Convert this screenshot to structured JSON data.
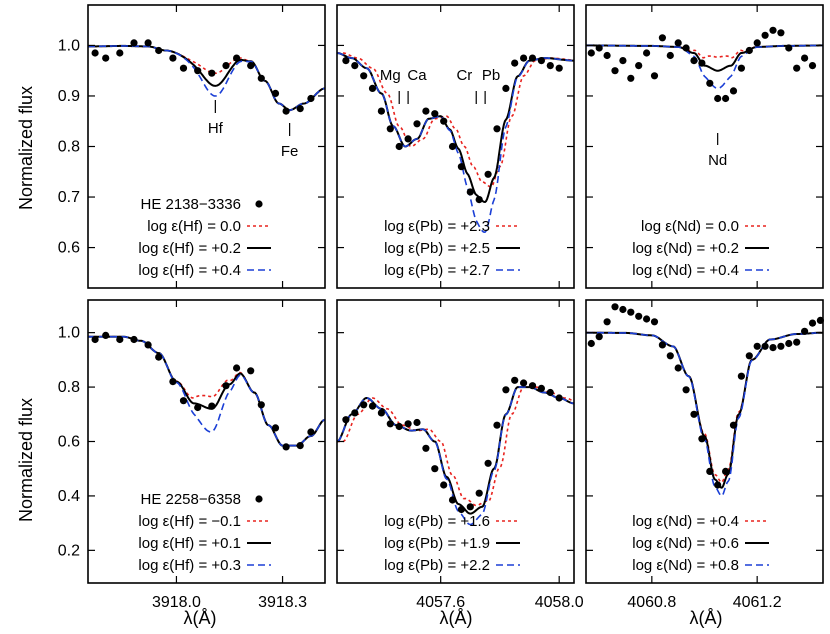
{
  "figure": {
    "xlabel": "λ(Å)",
    "ylabel": "Normalized flux",
    "colors": {
      "obs": "#000000",
      "low": "#e8231f",
      "mid": "#000000",
      "high": "#1b3fd6",
      "smooth": "#1b3fd6"
    }
  },
  "chart_data": [
    {
      "type": "line",
      "row": 0,
      "col": 0,
      "xlim": [
        3917.75,
        3918.42
      ],
      "ylim": [
        0.52,
        1.08
      ],
      "xticks": [],
      "yticks": [
        0.6,
        0.7,
        0.8,
        0.9,
        1.0
      ],
      "star": "HE 2138−3336",
      "legend": [
        "log ε(Hf) =  0.0",
        "log ε(Hf) = +0.2",
        "log ε(Hf) = +0.4"
      ],
      "legend_style": [
        "low",
        "mid",
        "high"
      ],
      "annotations": [
        {
          "text": "Hf",
          "x": 3918.11
        },
        {
          "text": "Fe",
          "x": 3918.32
        }
      ],
      "observed": {
        "x": [
          3917.77,
          3917.8,
          3917.84,
          3917.88,
          3917.92,
          3917.95,
          3917.99,
          3918.02,
          3918.06,
          3918.1,
          3918.14,
          3918.17,
          3918.21,
          3918.24,
          3918.28,
          3918.31,
          3918.35,
          3918.38
        ],
        "y": [
          0.985,
          0.975,
          0.985,
          1.005,
          1.005,
          0.99,
          0.975,
          0.955,
          0.95,
          0.945,
          0.96,
          0.975,
          0.96,
          0.935,
          0.905,
          0.87,
          0.875,
          0.895
        ]
      },
      "lines": [
        {
          "style": "low",
          "center": 3918.11,
          "depth": 0.03
        },
        {
          "style": "mid",
          "center": 3918.11,
          "depth": 0.055
        },
        {
          "style": "high",
          "center": 3918.11,
          "depth": 0.075
        }
      ],
      "profile": {
        "x": [
          3917.75,
          3917.85,
          3917.92,
          3917.97,
          3918.05,
          3918.11,
          3918.17,
          3918.21,
          3918.25,
          3918.29,
          3918.32,
          3918.36,
          3918.42
        ],
        "y": [
          0.998,
          0.999,
          0.998,
          0.99,
          0.975,
          0.975,
          0.982,
          0.97,
          0.93,
          0.885,
          0.872,
          0.885,
          0.915
        ]
      },
      "smooth_from_profile": true
    },
    {
      "type": "line",
      "row": 0,
      "col": 1,
      "xlim": [
        4057.25,
        4058.05
      ],
      "ylim": [
        0.52,
        1.08
      ],
      "xticks": [],
      "yticks": [
        0.6,
        0.7,
        0.8,
        0.9,
        1.0
      ],
      "legend": [
        "log ε(Pb) = +2.3",
        "log ε(Pb) = +2.5",
        "log ε(Pb) = +2.7"
      ],
      "legend_style": [
        "low",
        "mid",
        "high"
      ],
      "annotations": [
        {
          "text": "Mg",
          "x": 4057.43
        },
        {
          "text": "Ca",
          "x": 4057.52
        },
        {
          "text": "Cr",
          "x": 4057.68
        },
        {
          "text": "Pb",
          "x": 4057.77
        }
      ],
      "tickmarks": [
        4057.46,
        4057.49,
        4057.72,
        4057.75
      ],
      "observed": {
        "x": [
          4057.28,
          4057.31,
          4057.34,
          4057.37,
          4057.4,
          4057.43,
          4057.46,
          4057.49,
          4057.52,
          4057.55,
          4057.58,
          4057.61,
          4057.64,
          4057.67,
          4057.7,
          4057.73,
          4057.76,
          4057.79,
          4057.82,
          4057.85,
          4057.88,
          4057.91,
          4057.94,
          4057.97,
          4058.0
        ],
        "y": [
          0.97,
          0.96,
          0.94,
          0.915,
          0.87,
          0.835,
          0.8,
          0.815,
          0.845,
          0.87,
          0.865,
          0.85,
          0.8,
          0.76,
          0.71,
          0.695,
          0.745,
          0.835,
          0.915,
          0.965,
          0.975,
          0.975,
          0.97,
          0.96,
          0.955
        ]
      },
      "profile": {
        "x": [
          4057.25,
          4057.3,
          4057.35,
          4057.4,
          4057.44,
          4057.48,
          4057.52,
          4057.56,
          4057.6,
          4057.63,
          4057.66,
          4057.69,
          4057.72,
          4057.75,
          4057.78,
          4057.82,
          4057.86,
          4057.9,
          4057.95,
          4058.05
        ],
        "y": [
          0.985,
          0.975,
          0.955,
          0.905,
          0.84,
          0.8,
          0.815,
          0.855,
          0.86,
          0.835,
          0.8,
          0.76,
          0.73,
          0.72,
          0.76,
          0.86,
          0.94,
          0.97,
          0.975,
          0.97
        ]
      },
      "lines": [
        {
          "style": "low",
          "center": 4057.745,
          "depth": 0.0,
          "shift": 0.02
        },
        {
          "style": "mid",
          "center": 4057.745,
          "depth": 0.03,
          "shift": 0.0
        },
        {
          "style": "high",
          "center": 4057.745,
          "depth": 0.09,
          "shift": 0.0
        }
      ]
    },
    {
      "type": "line",
      "row": 0,
      "col": 2,
      "xlim": [
        4060.55,
        4061.45
      ],
      "ylim": [
        0.52,
        1.08
      ],
      "xticks": [],
      "yticks": [
        0.6,
        0.7,
        0.8,
        0.9,
        1.0
      ],
      "legend": [
        "log ε(Nd) =  0.0",
        "log ε(Nd) = +0.2",
        "log ε(Nd) = +0.4"
      ],
      "legend_style": [
        "low",
        "mid",
        "high"
      ],
      "annotations": [
        {
          "text": "Nd",
          "x": 4061.05
        }
      ],
      "observed": {
        "x": [
          4060.57,
          4060.6,
          4060.63,
          4060.66,
          4060.69,
          4060.72,
          4060.75,
          4060.78,
          4060.81,
          4060.84,
          4060.87,
          4060.9,
          4060.93,
          4060.96,
          4060.99,
          4061.02,
          4061.05,
          4061.08,
          4061.11,
          4061.14,
          4061.17,
          4061.2,
          4061.23,
          4061.26,
          4061.29,
          4061.32,
          4061.35,
          4061.38,
          4061.41
        ],
        "y": [
          0.985,
          0.995,
          0.98,
          0.95,
          0.97,
          0.935,
          0.96,
          0.985,
          0.94,
          1.015,
          0.98,
          1.005,
          0.995,
          0.97,
          0.965,
          0.925,
          0.895,
          0.895,
          0.91,
          0.955,
          0.99,
          1.005,
          1.02,
          1.03,
          1.025,
          0.995,
          0.955,
          0.975,
          0.96
        ]
      },
      "profile": {
        "x": [
          4060.55,
          4060.8,
          4060.9,
          4060.96,
          4061.0,
          4061.05,
          4061.1,
          4061.14,
          4061.2,
          4061.3,
          4061.45
        ],
        "y": [
          1.0,
          0.999,
          0.997,
          0.985,
          0.96,
          0.95,
          0.96,
          0.985,
          0.997,
          0.999,
          1.0
        ]
      },
      "lines": [
        {
          "style": "low",
          "center": 4061.05,
          "depth": -0.027
        },
        {
          "style": "mid",
          "center": 4061.05,
          "depth": 0.0
        },
        {
          "style": "high",
          "center": 4061.05,
          "depth": 0.035
        }
      ]
    },
    {
      "type": "line",
      "row": 1,
      "col": 0,
      "xlim": [
        3917.75,
        3918.42
      ],
      "ylim": [
        0.08,
        1.12
      ],
      "xticks": [
        3918.0,
        3918.3
      ],
      "xticklabels": [
        "3918.0",
        "3918.3"
      ],
      "yticks": [
        0.2,
        0.4,
        0.6,
        0.8,
        1.0
      ],
      "star": "HE 2258−6358",
      "legend": [
        "log ε(Hf) = −0.1",
        "log ε(Hf) = +0.1",
        "log ε(Hf) = +0.3"
      ],
      "legend_style": [
        "low",
        "mid",
        "high"
      ],
      "observed": {
        "x": [
          3917.77,
          3917.8,
          3917.84,
          3917.88,
          3917.92,
          3917.95,
          3917.99,
          3918.02,
          3918.06,
          3918.1,
          3918.14,
          3918.17,
          3918.21,
          3918.24,
          3918.28,
          3918.31,
          3918.35,
          3918.38
        ],
        "y": [
          0.975,
          0.99,
          0.975,
          0.975,
          0.955,
          0.91,
          0.82,
          0.75,
          0.725,
          0.73,
          0.805,
          0.87,
          0.86,
          0.735,
          0.65,
          0.58,
          0.585,
          0.635
        ]
      },
      "profile": {
        "x": [
          3917.75,
          3917.85,
          3917.9,
          3917.95,
          3918.0,
          3918.05,
          3918.1,
          3918.15,
          3918.18,
          3918.22,
          3918.26,
          3918.3,
          3918.34,
          3918.38,
          3918.42
        ],
        "y": [
          0.985,
          0.985,
          0.97,
          0.925,
          0.82,
          0.74,
          0.72,
          0.81,
          0.85,
          0.78,
          0.66,
          0.585,
          0.585,
          0.62,
          0.68
        ]
      },
      "lines": [
        {
          "style": "low",
          "center": 3918.095,
          "depth": -0.045
        },
        {
          "style": "mid",
          "center": 3918.095,
          "depth": 0.0
        },
        {
          "style": "high",
          "center": 3918.095,
          "depth": 0.085
        }
      ]
    },
    {
      "type": "line",
      "row": 1,
      "col": 1,
      "xlim": [
        4057.25,
        4058.05
      ],
      "ylim": [
        0.08,
        1.12
      ],
      "xticks": [
        4057.6,
        4058.0
      ],
      "xticklabels": [
        "4057.6",
        "4058.0"
      ],
      "yticks": [
        0.2,
        0.4,
        0.6,
        0.8,
        1.0
      ],
      "legend": [
        "log ε(Pb) = +1.6",
        "log ε(Pb) = +1.9",
        "log ε(Pb) = +2.2"
      ],
      "legend_style": [
        "low",
        "mid",
        "high"
      ],
      "observed": {
        "x": [
          4057.28,
          4057.31,
          4057.34,
          4057.37,
          4057.4,
          4057.43,
          4057.46,
          4057.49,
          4057.52,
          4057.55,
          4057.58,
          4057.61,
          4057.64,
          4057.67,
          4057.7,
          4057.73,
          4057.76,
          4057.79,
          4057.82,
          4057.85,
          4057.88,
          4057.91,
          4057.94,
          4057.97,
          4058.0
        ],
        "y": [
          0.68,
          0.705,
          0.735,
          0.73,
          0.705,
          0.665,
          0.655,
          0.665,
          0.67,
          0.575,
          0.5,
          0.44,
          0.385,
          0.35,
          0.36,
          0.41,
          0.52,
          0.66,
          0.79,
          0.825,
          0.815,
          0.805,
          0.795,
          0.78,
          0.76
        ]
      },
      "profile": {
        "x": [
          4057.25,
          4057.3,
          4057.35,
          4057.4,
          4057.45,
          4057.5,
          4057.54,
          4057.58,
          4057.62,
          4057.66,
          4057.7,
          4057.74,
          4057.78,
          4057.82,
          4057.86,
          4057.9,
          4057.95,
          4058.0,
          4058.05
        ],
        "y": [
          0.6,
          0.7,
          0.76,
          0.72,
          0.66,
          0.64,
          0.645,
          0.6,
          0.47,
          0.37,
          0.335,
          0.36,
          0.5,
          0.7,
          0.8,
          0.8,
          0.78,
          0.76,
          0.74
        ]
      },
      "lines": [
        {
          "style": "low",
          "center": 4057.7,
          "depth": -0.03,
          "shift": 0.02
        },
        {
          "style": "mid",
          "center": 4057.7,
          "depth": 0.0,
          "shift": 0.0
        },
        {
          "style": "high",
          "center": 4057.7,
          "depth": 0.04,
          "shift": 0.0
        }
      ]
    },
    {
      "type": "line",
      "row": 1,
      "col": 2,
      "xlim": [
        4060.55,
        4061.45
      ],
      "ylim": [
        0.08,
        1.12
      ],
      "xticks": [
        4060.8,
        4061.2
      ],
      "xticklabels": [
        "4060.8",
        "4061.2"
      ],
      "yticks": [
        0.2,
        0.4,
        0.6,
        0.8,
        1.0
      ],
      "legend": [
        "log ε(Nd) = +0.4",
        "log ε(Nd) = +0.6",
        "log ε(Nd) = +0.8"
      ],
      "legend_style": [
        "low",
        "mid",
        "high"
      ],
      "observed": {
        "x": [
          4060.57,
          4060.6,
          4060.63,
          4060.66,
          4060.69,
          4060.72,
          4060.75,
          4060.78,
          4060.81,
          4060.84,
          4060.87,
          4060.9,
          4060.93,
          4060.96,
          4060.99,
          4061.02,
          4061.05,
          4061.08,
          4061.11,
          4061.14,
          4061.17,
          4061.2,
          4061.23,
          4061.26,
          4061.29,
          4061.32,
          4061.35,
          4061.38,
          4061.41,
          4061.44
        ],
        "y": [
          0.96,
          0.985,
          1.04,
          1.095,
          1.085,
          1.075,
          1.06,
          1.05,
          1.04,
          0.955,
          0.915,
          0.87,
          0.79,
          0.7,
          0.61,
          0.49,
          0.44,
          0.49,
          0.66,
          0.84,
          0.915,
          0.95,
          0.95,
          0.945,
          0.95,
          0.96,
          0.965,
          1.005,
          1.035,
          1.045
        ]
      },
      "profile": {
        "x": [
          4060.55,
          4060.7,
          4060.8,
          4060.88,
          4060.94,
          4061.0,
          4061.04,
          4061.065,
          4061.09,
          4061.13,
          4061.18,
          4061.25,
          4061.35,
          4061.45
        ],
        "y": [
          1.0,
          0.999,
          0.99,
          0.95,
          0.84,
          0.62,
          0.46,
          0.43,
          0.48,
          0.7,
          0.9,
          0.975,
          0.995,
          1.0
        ]
      },
      "lines": [
        {
          "style": "low",
          "center": 4061.065,
          "depth": -0.02
        },
        {
          "style": "mid",
          "center": 4061.065,
          "depth": 0.0
        },
        {
          "style": "high",
          "center": 4061.065,
          "depth": 0.03
        }
      ]
    }
  ]
}
